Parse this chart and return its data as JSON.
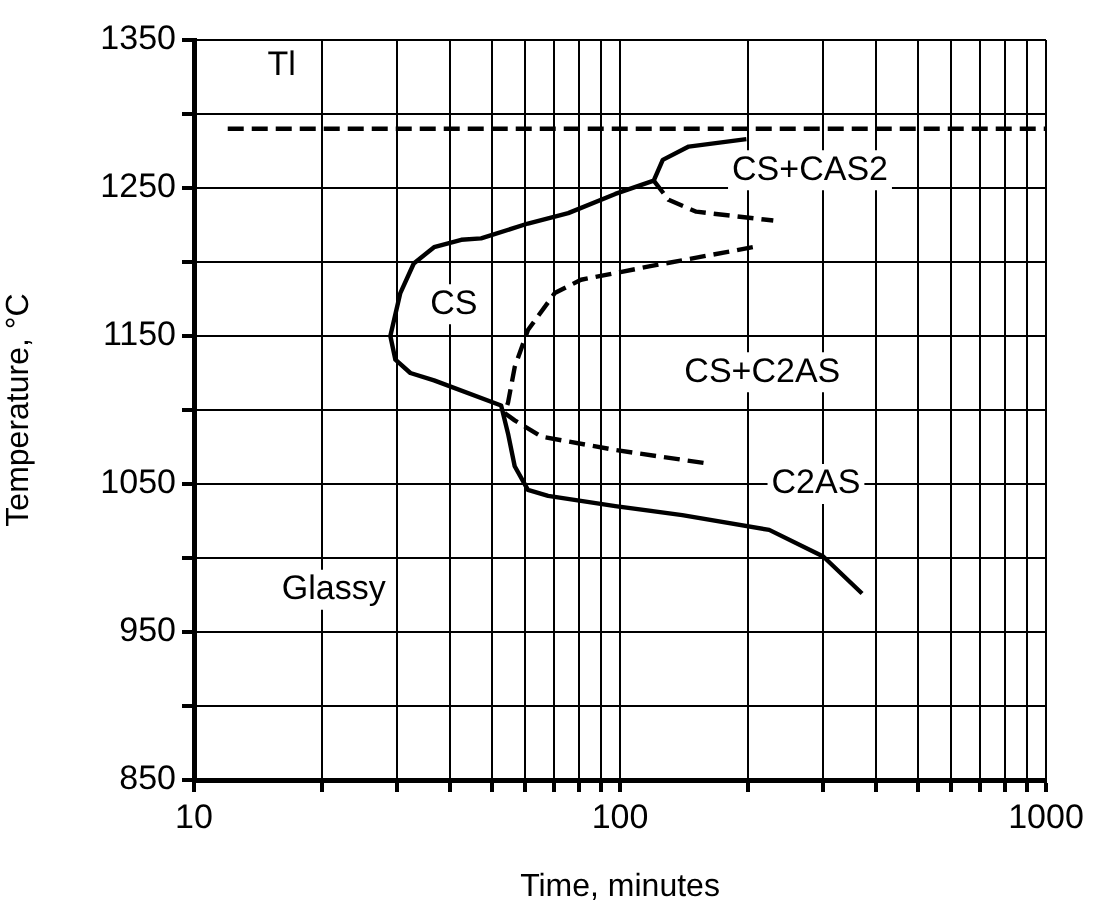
{
  "chart_data": {
    "type": "line",
    "xlabel": "Time, minutes",
    "ylabel": "Temperature, °C",
    "log": "x",
    "grid": true,
    "legend": false,
    "marker": "none",
    "xlim": [
      10,
      1000
    ],
    "xticks": [
      10,
      {
        "value": 20,
        "label": null
      },
      {
        "value": 30,
        "label": null
      },
      {
        "value": 40,
        "label": null
      },
      {
        "value": 50,
        "label": null
      },
      {
        "value": 60,
        "label": null
      },
      {
        "value": 70,
        "label": null
      },
      {
        "value": 80,
        "label": null
      },
      {
        "value": 90,
        "label": null
      },
      100,
      {
        "value": 200,
        "label": null
      },
      {
        "value": 300,
        "label": null
      },
      {
        "value": 400,
        "label": null
      },
      {
        "value": 500,
        "label": null
      },
      {
        "value": 600,
        "label": null
      },
      {
        "value": 700,
        "label": null
      },
      {
        "value": 800,
        "label": null
      },
      {
        "value": 900,
        "label": null
      },
      1000
    ],
    "ylim": [
      850,
      1350
    ],
    "yticks": [
      850,
      {
        "value": 900,
        "label": null
      },
      950,
      {
        "value": 1000,
        "label": null
      },
      1050,
      {
        "value": 1100,
        "label": null
      },
      1150,
      {
        "value": 1200,
        "label": null
      },
      1250,
      {
        "value": 1300,
        "label": null
      },
      1350
    ],
    "series": [
      {
        "type": "line",
        "color": "#000000",
        "line_style": "dashed",
        "x": [
          12,
          1000
        ],
        "values": [
          1290,
          1290
        ]
      },
      {
        "type": "line",
        "color": "#000000",
        "line_style": "solid",
        "x": [
          198,
          145,
          126,
          120,
          97.5,
          75.6,
          60.8,
          47.2,
          42.4,
          36.6,
          32.8,
          30.5,
          28.9,
          29.7,
          32.2,
          36.6,
          52.6,
          54.6,
          56.6,
          60.8,
          67.8,
          97.5,
          140,
          224,
          300,
          370
        ],
        "values": [
          1283,
          1278,
          1269,
          1255,
          1246,
          1233,
          1226,
          1216,
          1215,
          1210,
          1199,
          1179,
          1150,
          1134,
          1125,
          1120,
          1103,
          1084,
          1062,
          1046,
          1042,
          1035,
          1029,
          1019,
          1001,
          976
        ]
      },
      {
        "type": "line",
        "color": "#000000",
        "line_style": "dashed",
        "x": [
          120,
          130,
          151,
          229
        ],
        "values": [
          1255,
          1242,
          1234,
          1228
        ]
      },
      {
        "type": "line",
        "color": "#000000",
        "line_style": "dashed",
        "x": [
          205,
          117,
          81,
          70.3,
          60.8,
          56.6,
          54.6,
          53.6
        ],
        "values": [
          1210,
          1197,
          1188,
          1179,
          1154,
          1129,
          1105,
          1098
        ]
      },
      {
        "type": "line",
        "color": "#000000",
        "line_style": "dashed",
        "x": [
          53.6,
          56.6,
          65.4,
          97.5,
          159
        ],
        "values": [
          1098,
          1093,
          1082,
          1073,
          1064
        ]
      }
    ],
    "annotations": [
      "Tl",
      "CS",
      "CS+CAS2",
      "CS+C2AS",
      "C2AS",
      "Glassy"
    ]
  }
}
